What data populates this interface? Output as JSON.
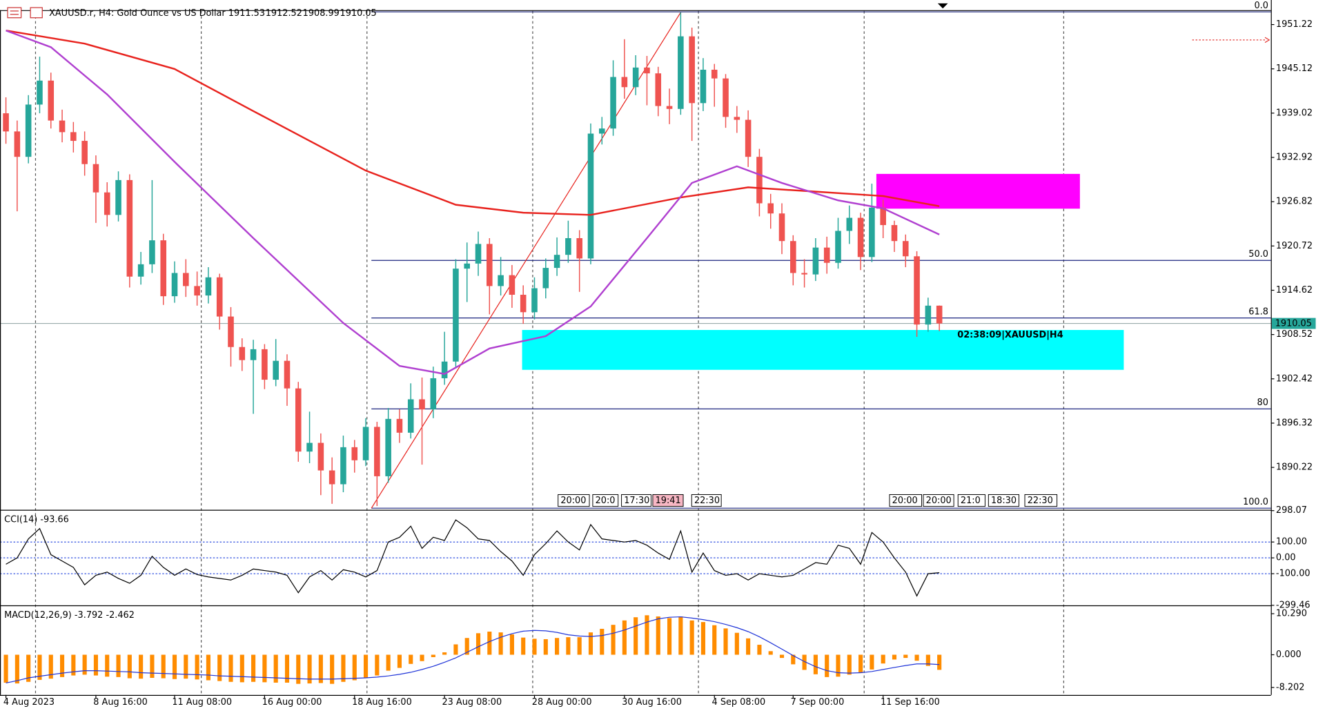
{
  "header": {
    "symbol": "XAUUSD.r, H4:  Gold Ounce vs US Dollar",
    "ohlc": [
      1911.53,
      1912.52,
      1908.99,
      1910.05
    ]
  },
  "chart_data": [
    {
      "type": "candlestick",
      "up_color": "#26a69a",
      "down_color": "#ef5350",
      "categories": [
        "4 Aug 2023",
        null,
        null,
        null,
        null,
        null,
        null,
        null,
        "8 Aug 16:00",
        null,
        null,
        null,
        null,
        null,
        null,
        "11 Aug 08:00",
        null,
        null,
        null,
        null,
        null,
        null,
        null,
        "16 Aug 00:00",
        null,
        null,
        null,
        null,
        null,
        null,
        null,
        "18 Aug 16:00",
        null,
        null,
        null,
        null,
        null,
        null,
        null,
        "23 Aug 08:00",
        null,
        null,
        null,
        null,
        null,
        null,
        null,
        "28 Aug 00:00",
        null,
        null,
        null,
        null,
        null,
        null,
        null,
        "30 Aug 16:00",
        null,
        null,
        null,
        null,
        null,
        null,
        null,
        "4 Sep 08:00",
        null,
        null,
        null,
        null,
        null,
        null,
        "7 Sep 00:00",
        null,
        null,
        null,
        null,
        null,
        null,
        null,
        "11 Sep 16:00",
        null,
        null,
        null,
        null,
        null
      ],
      "open": [
        1939.0,
        1936.5,
        1933.0,
        1940.2,
        1943.5,
        1938.0,
        1936.4,
        1935.2,
        1932.0,
        1928.1,
        1925.0,
        1929.8,
        1916.5,
        1918.2,
        1921.5,
        1913.8,
        1917.0,
        1915.2,
        1913.9,
        1916.4,
        1911.0,
        1906.8,
        1905.0,
        1906.5,
        1902.3,
        1904.9,
        1901.1,
        1892.4,
        1893.6,
        1889.8,
        1887.9,
        1893.0,
        1891.2,
        1895.8,
        1889.0,
        1896.9,
        1895.0,
        1899.6,
        1898.2,
        1902.5,
        1904.8,
        1917.6,
        1918.3,
        1921.0,
        1915.2,
        1916.7,
        1914.0,
        1911.6,
        1914.9,
        1917.7,
        1919.5,
        1921.8,
        1919.0,
        1936.2,
        1936.9,
        1944.0,
        1942.6,
        1945.3,
        1944.5,
        1940.0,
        1939.6,
        1949.6,
        1940.4,
        1945.0,
        1943.8,
        1938.5,
        1938.1,
        1933.0,
        1926.6,
        1925.2,
        1921.4,
        1917.0,
        1916.8,
        1920.5,
        1918.4,
        1922.8,
        1924.6,
        1919.2,
        1926.0,
        1923.6,
        1921.4,
        1919.3,
        1909.9,
        1912.5
      ],
      "high": [
        1941.2,
        1938.0,
        1941.5,
        1946.8,
        1944.6,
        1939.5,
        1937.8,
        1936.5,
        1933.2,
        1929.5,
        1931.0,
        1930.6,
        1919.9,
        1929.8,
        1922.4,
        1918.6,
        1918.9,
        1917.2,
        1917.8,
        1916.9,
        1912.3,
        1908.0,
        1907.8,
        1907.2,
        1907.9,
        1905.8,
        1902.0,
        1897.9,
        1894.9,
        1891.6,
        1894.6,
        1894.0,
        1897.0,
        1896.5,
        1898.4,
        1898.2,
        1901.8,
        1902.6,
        1904.1,
        1908.9,
        1918.9,
        1921.2,
        1922.7,
        1921.8,
        1919.2,
        1918.1,
        1915.3,
        1916.4,
        1919.0,
        1921.9,
        1924.2,
        1922.9,
        1937.6,
        1938.5,
        1946.3,
        1949.2,
        1947.0,
        1946.9,
        1945.4,
        1942.4,
        1952.9,
        1950.8,
        1946.6,
        1945.8,
        1944.4,
        1940.0,
        1939.4,
        1934.1,
        1927.9,
        1926.6,
        1922.2,
        1918.9,
        1921.8,
        1922.0,
        1924.6,
        1926.3,
        1925.3,
        1929.3,
        1927.1,
        1924.2,
        1922.3,
        1920.0,
        1913.6,
        1912.52
      ],
      "low": [
        1934.8,
        1925.5,
        1932.1,
        1939.0,
        1936.9,
        1935.0,
        1933.6,
        1930.4,
        1923.9,
        1923.4,
        1924.1,
        1915.0,
        1915.4,
        1917.0,
        1912.6,
        1912.9,
        1913.7,
        1912.5,
        1912.8,
        1909.2,
        1904.1,
        1903.5,
        1897.6,
        1901.0,
        1901.4,
        1898.7,
        1891.0,
        1890.8,
        1886.4,
        1885.2,
        1886.8,
        1889.5,
        1890.4,
        1884.9,
        1888.1,
        1893.6,
        1894.2,
        1890.6,
        1897.0,
        1901.6,
        1903.9,
        1913.0,
        1916.6,
        1911.3,
        1913.9,
        1912.2,
        1910.0,
        1910.6,
        1913.5,
        1916.6,
        1918.4,
        1914.4,
        1918.2,
        1934.7,
        1935.9,
        1941.0,
        1941.5,
        1940.1,
        1938.6,
        1937.5,
        1938.8,
        1935.2,
        1939.3,
        1939.9,
        1937.0,
        1936.3,
        1931.6,
        1924.8,
        1923.1,
        1919.6,
        1915.3,
        1915.0,
        1915.9,
        1916.9,
        1917.6,
        1921.0,
        1917.4,
        1918.5,
        1921.8,
        1919.9,
        1917.8,
        1908.2,
        1908.9,
        1908.99
      ],
      "close": [
        1936.5,
        1933.0,
        1940.2,
        1943.5,
        1938.0,
        1936.4,
        1935.2,
        1932.0,
        1928.1,
        1925.0,
        1929.8,
        1916.5,
        1918.2,
        1921.5,
        1913.8,
        1917.0,
        1915.2,
        1913.9,
        1916.4,
        1911.0,
        1906.8,
        1905.0,
        1906.5,
        1902.3,
        1904.9,
        1901.1,
        1892.4,
        1893.6,
        1889.8,
        1887.9,
        1893.0,
        1891.2,
        1895.8,
        1889.0,
        1896.9,
        1895.0,
        1899.6,
        1898.2,
        1902.5,
        1904.8,
        1917.6,
        1918.3,
        1921.0,
        1915.2,
        1916.7,
        1914.0,
        1911.6,
        1914.9,
        1917.7,
        1919.5,
        1921.8,
        1919.0,
        1936.2,
        1936.9,
        1944.0,
        1942.6,
        1945.3,
        1944.5,
        1940.0,
        1939.6,
        1949.6,
        1940.4,
        1945.0,
        1943.8,
        1938.5,
        1938.1,
        1933.0,
        1926.6,
        1925.2,
        1921.4,
        1917.0,
        1916.8,
        1920.5,
        1918.4,
        1922.8,
        1924.6,
        1919.2,
        1926.0,
        1923.6,
        1921.4,
        1919.3,
        1909.9,
        1912.5,
        1910.05
      ],
      "overlays": [
        {
          "color": "#e8231e",
          "x": [
            0,
            7,
            15,
            22,
            32,
            40,
            46,
            52,
            60,
            66,
            72,
            78,
            83
          ],
          "values": [
            1950.4,
            1948.6,
            1945.1,
            1939.3,
            1931.1,
            1926.4,
            1925.3,
            1925.0,
            1927.4,
            1928.8,
            1928.2,
            1927.6,
            1926.2
          ]
        },
        {
          "color": "#b040d0",
          "x": [
            0,
            4,
            9,
            15,
            22,
            30,
            35,
            39,
            43,
            48,
            52,
            57,
            61,
            65,
            69,
            74,
            78,
            83
          ],
          "values": [
            1950.4,
            1948.1,
            1941.6,
            1932.3,
            1921.8,
            1910.1,
            1904.2,
            1903.1,
            1906.6,
            1908.3,
            1912.4,
            1921.8,
            1929.4,
            1931.7,
            1929.4,
            1927.0,
            1925.9,
            1922.3
          ]
        }
      ],
      "trendline": {
        "color": "#e8231e",
        "x": [
          32.5,
          60
        ],
        "values": [
          1884.6,
          1952.9
        ]
      },
      "fib": {
        "color": "#1a237e",
        "x": 32.5,
        "levels": [
          {
            "label": "0.0",
            "value": 1952.97
          },
          {
            "label": "50.0",
            "value": 1918.73
          },
          {
            "label": "61.8",
            "value": 1910.8
          },
          {
            "label": "80",
            "value": 1898.28
          },
          {
            "label": "100.0",
            "value": 1884.6
          }
        ]
      },
      "zones": [
        {
          "color": "#ff00ff",
          "x": [
            77.4,
            95.5
          ],
          "values": [
            1925.86,
            1930.65
          ]
        },
        {
          "color": "#00ffff",
          "x": [
            45.9,
            99.4
          ],
          "values": [
            1903.66,
            1909.15
          ]
        }
      ],
      "last_price": 1910.05,
      "timer_label": "02:38:09|XAUUSD|H4",
      "alert_price": 1949.1,
      "time_markers": [
        "20:00",
        "20:0",
        "17:30",
        "19:41",
        "22:30",
        "20:00",
        "20:00",
        "21:0",
        "18:30",
        "22:30"
      ],
      "ylim": [
        1884.38,
        1953.09
      ],
      "yticks": [
        1951.22,
        1945.12,
        1939.02,
        1932.92,
        1926.82,
        1920.72,
        1914.62,
        1908.52,
        1902.42,
        1896.32,
        1890.22
      ]
    },
    {
      "type": "line",
      "title": "CCI(14) -93.66",
      "color": "#000000",
      "grid": true,
      "grid_color": "#3050e0",
      "values": [
        -40,
        0,
        120,
        185,
        20,
        -20,
        -60,
        -170,
        -110,
        -90,
        -130,
        -160,
        -110,
        10,
        -60,
        -110,
        -70,
        -105,
        -120,
        -130,
        -140,
        -110,
        -70,
        -80,
        -90,
        -110,
        -220,
        -120,
        -80,
        -140,
        -75,
        -90,
        -120,
        -80,
        100,
        130,
        200,
        60,
        130,
        110,
        240,
        190,
        120,
        110,
        40,
        -20,
        -110,
        20,
        90,
        170,
        100,
        50,
        210,
        120,
        110,
        100,
        110,
        80,
        30,
        -10,
        170,
        -90,
        30,
        -80,
        -110,
        -100,
        -140,
        -100,
        -110,
        -120,
        -110,
        -70,
        -30,
        -40,
        80,
        60,
        -40,
        160,
        100,
        0,
        -90,
        -240,
        -100,
        -93.66
      ],
      "ylim": [
        -299.46,
        298.07
      ],
      "yticks": [
        298.07,
        {
          "value": 100,
          "label": "100.00"
        },
        {
          "value": 0,
          "label": "0.00"
        },
        {
          "value": -100,
          "label": "-100.00"
        },
        -299.46
      ]
    },
    {
      "type": "macd",
      "title": "MACD(12,26,9) -3.792 -2.462",
      "grid": false,
      "series": [
        {
          "type": "bar",
          "color": "#ff8c00",
          "values": [
            -7.0,
            -7.2,
            -6.8,
            -6.3,
            -6.0,
            -5.6,
            -5.2,
            -5.0,
            -5.2,
            -5.5,
            -5.6,
            -5.9,
            -6.0,
            -5.8,
            -5.9,
            -6.1,
            -6.0,
            -6.2,
            -6.4,
            -6.6,
            -6.8,
            -6.9,
            -6.8,
            -6.9,
            -7.0,
            -7.0,
            -7.3,
            -7.2,
            -7.1,
            -7.3,
            -6.8,
            -6.4,
            -5.8,
            -5.2,
            -4.0,
            -3.3,
            -2.3,
            -1.6,
            -0.6,
            0.6,
            2.6,
            4.2,
            5.4,
            5.8,
            5.6,
            5.1,
            4.3,
            4.0,
            3.9,
            4.2,
            4.4,
            4.4,
            5.6,
            6.5,
            7.5,
            8.6,
            9.4,
            9.9,
            9.6,
            9.2,
            9.6,
            8.6,
            8.2,
            7.4,
            6.6,
            5.5,
            4.1,
            2.5,
            0.9,
            -0.8,
            -2.4,
            -3.8,
            -4.9,
            -5.6,
            -5.5,
            -5.0,
            -4.6,
            -3.7,
            -2.2,
            -1.2,
            -0.8,
            -1.5,
            -2.8,
            -3.792
          ]
        },
        {
          "type": "line",
          "color": "#2035d8",
          "values": [
            -7.1,
            -6.5,
            -5.8,
            -5.4,
            -5.0,
            -4.6,
            -4.3,
            -4.0,
            -4.0,
            -4.1,
            -4.2,
            -4.3,
            -4.5,
            -4.6,
            -4.7,
            -4.8,
            -4.9,
            -5.0,
            -5.1,
            -5.3,
            -5.4,
            -5.5,
            -5.6,
            -5.7,
            -5.8,
            -5.9,
            -6.0,
            -6.1,
            -6.1,
            -6.1,
            -6.0,
            -5.9,
            -5.8,
            -5.6,
            -5.3,
            -4.9,
            -4.4,
            -3.7,
            -2.9,
            -1.9,
            -0.8,
            0.6,
            2.0,
            3.3,
            4.4,
            5.3,
            5.9,
            6.1,
            6.0,
            5.6,
            5.0,
            4.7,
            4.6,
            4.8,
            5.4,
            6.2,
            7.2,
            8.2,
            9.0,
            9.4,
            9.5,
            9.2,
            8.8,
            8.3,
            7.6,
            6.8,
            5.8,
            4.5,
            3.0,
            1.4,
            -0.2,
            -1.7,
            -3.0,
            -4.0,
            -4.5,
            -4.6,
            -4.5,
            -4.2,
            -3.7,
            -3.2,
            -2.7,
            -2.3,
            -2.3,
            -2.462
          ]
        }
      ],
      "ylim": [
        -10.08,
        12.18
      ],
      "yticks": [
        {
          "value": 10.29,
          "label": "10.290"
        },
        {
          "value": 0,
          "label": "0.000"
        },
        {
          "value": -8.202,
          "label": "-8.202"
        }
      ]
    }
  ]
}
